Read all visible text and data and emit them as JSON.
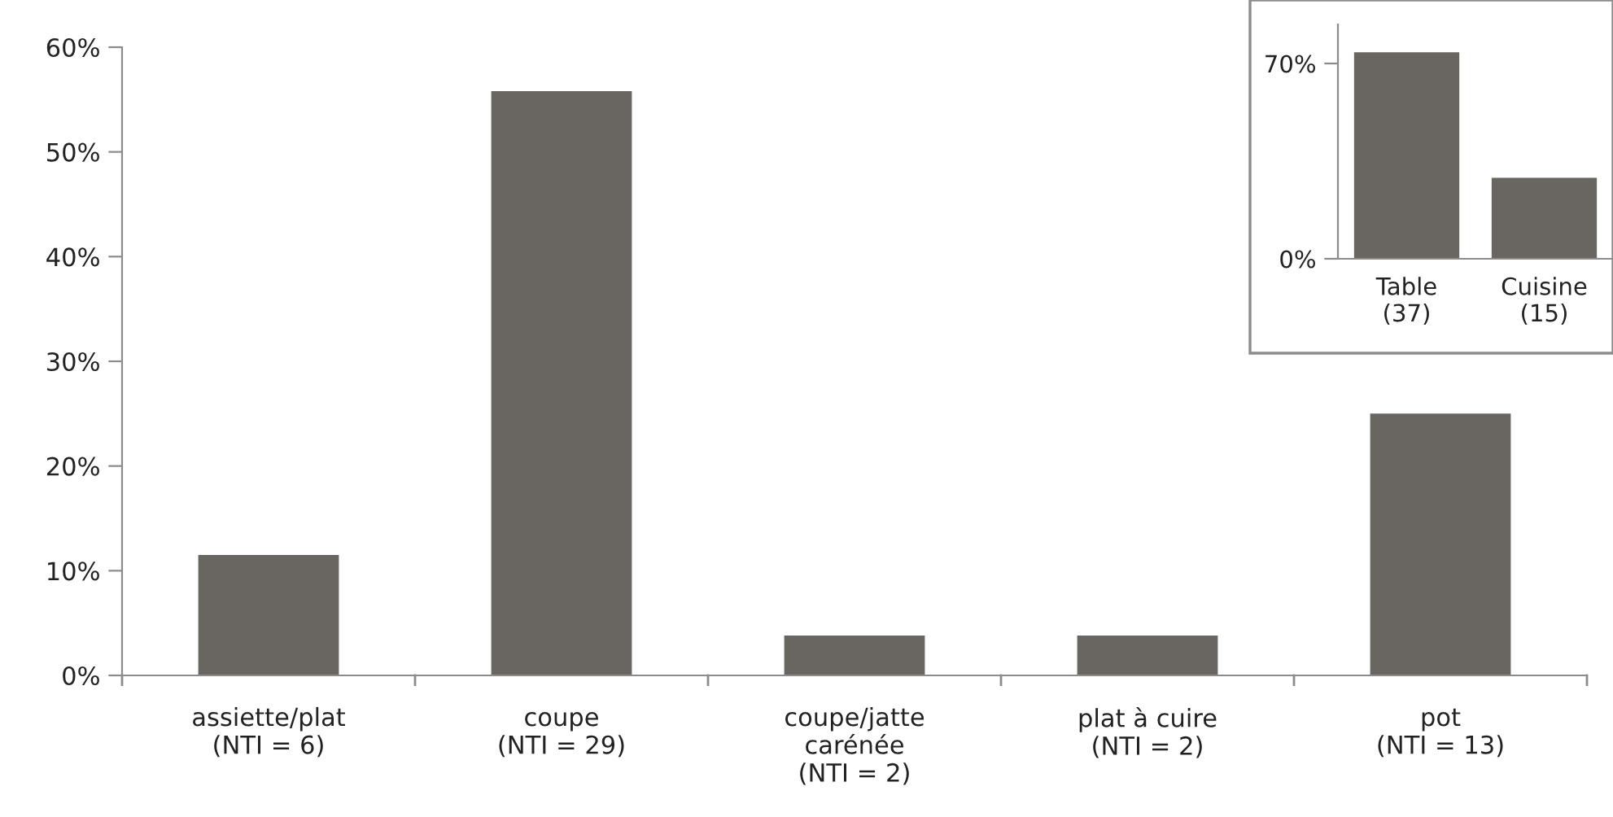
{
  "chart_data": [
    {
      "type": "bar",
      "categories": [
        "assiette/plat\n(NTI = 6)",
        "coupe\n(NTI = 29)",
        "coupe/jatte\ncarénée\n(NTI = 2)",
        "plat à cuire\n(NTI = 2)",
        "pot\n(NTI = 13)"
      ],
      "values": [
        11.5,
        55.8,
        3.8,
        3.8,
        25
      ],
      "color": "#696561",
      "ylim": [
        0,
        60
      ],
      "yticks": [
        {
          "value": 0,
          "label": "0%"
        },
        {
          "value": 10,
          "label": "10%"
        },
        {
          "value": 20,
          "label": "20%"
        },
        {
          "value": 30,
          "label": "30%"
        },
        {
          "value": 40,
          "label": "40%"
        },
        {
          "value": 50,
          "label": "50%"
        },
        {
          "value": 60,
          "label": "60%"
        }
      ],
      "grid": false,
      "legend": false
    },
    {
      "type": "bar",
      "categories": [
        "Table\n(37)",
        "Cuisine\n(15)"
      ],
      "values": [
        74,
        29
      ],
      "color": "#696561",
      "ylim": [
        0,
        84
      ],
      "yticks": [
        {
          "value": 0,
          "label": "0%"
        },
        {
          "value": 70,
          "label": "70%"
        }
      ],
      "grid": false,
      "legend": false
    }
  ]
}
